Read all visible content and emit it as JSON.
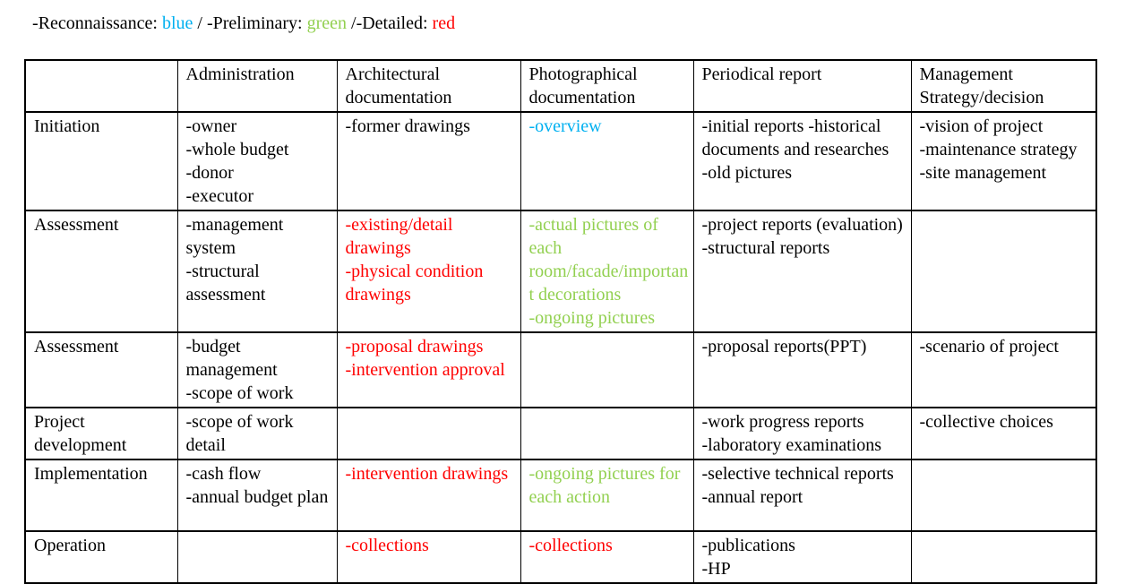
{
  "legend": {
    "segments": [
      {
        "text": "-Reconnaissance: ",
        "color": "#000000"
      },
      {
        "text": "blue",
        "color": "#00B0F0"
      },
      {
        "text": " / -Preliminary: ",
        "color": "#000000"
      },
      {
        "text": "green",
        "color": "#92D050"
      },
      {
        "text": " /-Detailed: ",
        "color": "#000000"
      },
      {
        "text": "red",
        "color": "#FF0000"
      }
    ]
  },
  "color_key": {
    "default": "#000000",
    "reconnaissance": "#00B0F0",
    "preliminary": "#92D050",
    "detailed": "#FF0000"
  },
  "table": {
    "column_headers": [
      "",
      "Administration",
      "Architectural documentation",
      "Photographical documentation",
      "Periodical report",
      "Management Strategy/decision"
    ],
    "rows": [
      {
        "label": "Initiation",
        "cells": [
          {
            "color": "default",
            "items": [
              "-owner",
              "-whole budget",
              "-donor",
              "-executor"
            ]
          },
          {
            "color": "default",
            "items": [
              "-former drawings"
            ]
          },
          {
            "color": "reconnaissance",
            "items": [
              "-overview"
            ]
          },
          {
            "color": "default",
            "items": [
              "-initial reports -historical documents and researches",
              "-old pictures"
            ]
          },
          {
            "color": "default",
            "items": [
              "-vision of project",
              "-maintenance strategy",
              "-site management"
            ]
          }
        ]
      },
      {
        "label": "Assessment",
        "cells": [
          {
            "color": "default",
            "items": [
              "-management system",
              "-structural assessment"
            ]
          },
          {
            "color": "detailed",
            "items": [
              "-existing/detail drawings",
              "-physical condition drawings"
            ]
          },
          {
            "color": "preliminary",
            "items": [
              "-actual pictures of each room/facade/important decorations",
              "-ongoing pictures"
            ]
          },
          {
            "color": "default",
            "items": [
              "-project reports (evaluation)",
              "-structural reports"
            ]
          },
          {
            "color": "default",
            "items": []
          }
        ]
      },
      {
        "label": "Assessment",
        "cells": [
          {
            "color": "default",
            "items": [
              "-budget management",
              "-scope of work"
            ]
          },
          {
            "color": "detailed",
            "items": [
              "-proposal drawings",
              "-intervention approval"
            ]
          },
          {
            "color": "default",
            "items": []
          },
          {
            "color": "default",
            "items": [
              "-proposal reports(PPT)"
            ]
          },
          {
            "color": "default",
            "items": [
              "-scenario of project"
            ]
          }
        ]
      },
      {
        "label": "Project development",
        "cells": [
          {
            "color": "default",
            "items": [
              "-scope of work detail"
            ]
          },
          {
            "color": "default",
            "items": []
          },
          {
            "color": "default",
            "items": []
          },
          {
            "color": "default",
            "items": [
              "-work progress reports",
              "-laboratory examinations"
            ]
          },
          {
            "color": "default",
            "items": [
              "-collective choices"
            ]
          }
        ]
      },
      {
        "label": "Implementation",
        "cells": [
          {
            "color": "default",
            "items": [
              "-cash flow",
              "-annual budget plan"
            ]
          },
          {
            "color": "detailed",
            "items": [
              "-intervention drawings"
            ]
          },
          {
            "color": "preliminary",
            "items": [
              "-ongoing pictures for each action"
            ]
          },
          {
            "color": "default",
            "items": [
              "-selective technical reports",
              "-annual report"
            ]
          },
          {
            "color": "default",
            "items": []
          }
        ]
      },
      {
        "label": "Operation",
        "cells": [
          {
            "color": "default",
            "items": []
          },
          {
            "color": "detailed",
            "items": [
              "-collections"
            ]
          },
          {
            "color": "detailed",
            "items": [
              "-collections"
            ]
          },
          {
            "color": "default",
            "items": [
              "-publications",
              "-HP"
            ]
          },
          {
            "color": "default",
            "items": []
          }
        ]
      }
    ]
  }
}
